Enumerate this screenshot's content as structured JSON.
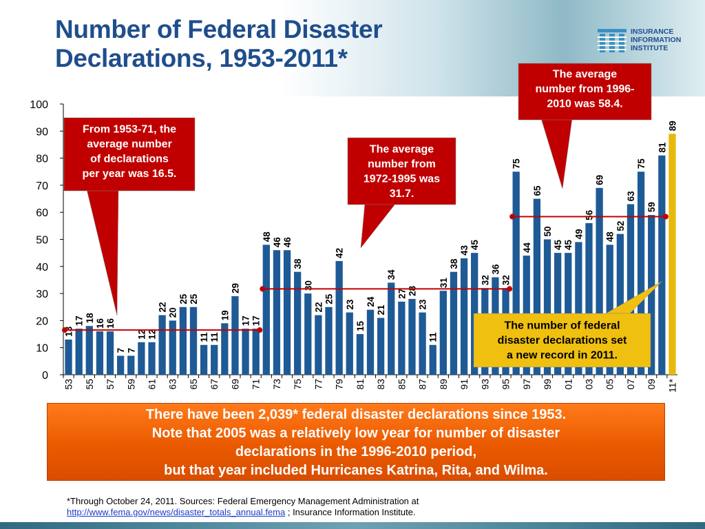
{
  "title_line1": "Number of Federal Disaster",
  "title_line2": "Declarations, 1953-2011*",
  "logo": {
    "line1": "INSURANCE",
    "line2": "INFORMATION",
    "line3": "INSTITUTE"
  },
  "callouts": {
    "early": [
      "From 1953-71, the",
      "average number",
      "of declarations",
      "per year was 16.5."
    ],
    "middle": [
      "The average",
      "number from",
      "1972-1995 was",
      "31.7."
    ],
    "late": [
      "The average",
      "number from 1996-",
      "2010 was 58.4."
    ],
    "record": [
      "The number of federal",
      "disaster declarations set",
      "a new record in 2011."
    ]
  },
  "banner": {
    "line1": "There have been 2,039* federal disaster declarations since 1953.",
    "line2": "Note that 2005 was a relatively low year for number of disaster",
    "line3": "declarations in the 1996-2010 period,",
    "line4": "but that year included Hurricanes Katrina, Rita, and Wilma."
  },
  "footnote": {
    "line1": "*Through October 24, 2011.  Sources: Federal Emergency Management Administration at",
    "link": "http://www.fema.gov/news/disaster_totals_annual.fema",
    "line2_suffix": " ; Insurance Information Institute."
  },
  "colors": {
    "bar": "#1e5a96",
    "highlight_bar": "#e8b90b",
    "average_line": "#c00000",
    "callout": "#c00000",
    "record_callout": "#f0c010"
  },
  "chart_data": {
    "type": "bar",
    "categories": [
      "53",
      "54",
      "55",
      "56",
      "57",
      "58",
      "59",
      "60",
      "61",
      "62",
      "63",
      "64",
      "65",
      "66",
      "67",
      "68",
      "69",
      "70",
      "71",
      "72",
      "73",
      "74",
      "75",
      "76",
      "77",
      "78",
      "79",
      "80",
      "81",
      "82",
      "83",
      "84",
      "85",
      "86",
      "87",
      "88",
      "89",
      "90",
      "91",
      "92",
      "93",
      "94",
      "95",
      "96",
      "97",
      "98",
      "99",
      "00",
      "01",
      "02",
      "03",
      "04",
      "05",
      "06",
      "07",
      "08",
      "09",
      "10",
      "11*"
    ],
    "values": [
      13,
      17,
      18,
      16,
      16,
      7,
      7,
      12,
      12,
      22,
      20,
      25,
      25,
      11,
      11,
      19,
      29,
      17,
      17,
      48,
      46,
      46,
      38,
      30,
      22,
      25,
      42,
      23,
      15,
      24,
      21,
      34,
      27,
      28,
      23,
      11,
      31,
      38,
      43,
      45,
      32,
      36,
      32,
      75,
      44,
      65,
      50,
      45,
      45,
      49,
      56,
      69,
      48,
      52,
      63,
      75,
      59,
      81,
      89
    ],
    "tick_labels": [
      "53",
      "55",
      "57",
      "59",
      "61",
      "63",
      "65",
      "67",
      "69",
      "71",
      "73",
      "75",
      "77",
      "79",
      "81",
      "83",
      "85",
      "87",
      "89",
      "91",
      "93",
      "95",
      "97",
      "99",
      "01",
      "03",
      "05",
      "07",
      "09",
      "11*"
    ],
    "ylim": [
      0,
      100
    ],
    "yticks": [
      0,
      10,
      20,
      30,
      40,
      50,
      60,
      70,
      80,
      90,
      100
    ],
    "averages": [
      {
        "from": "53",
        "to": "71",
        "value": 16.5
      },
      {
        "from": "72",
        "to": "95",
        "value": 31.7
      },
      {
        "from": "96",
        "to": "10",
        "value": 58.4
      }
    ],
    "highlight": "11*"
  }
}
